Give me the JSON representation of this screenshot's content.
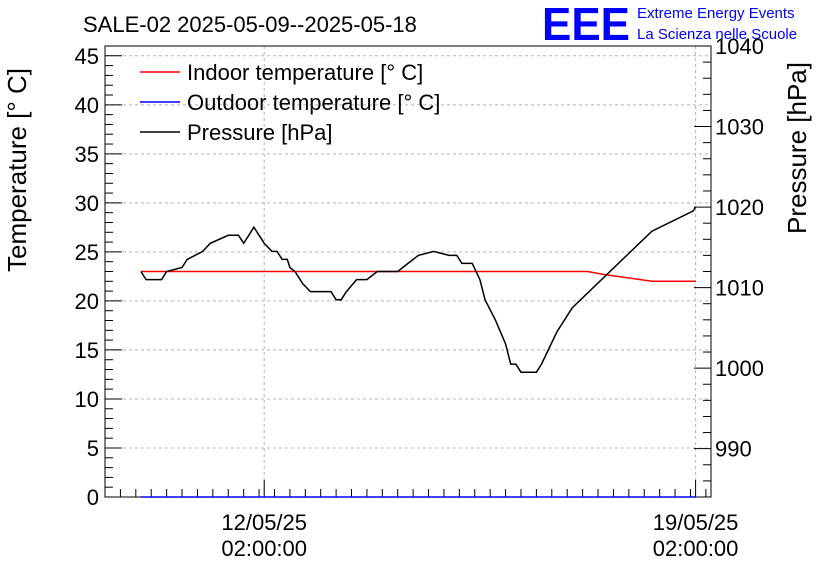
{
  "logo": {
    "mark": "EEE",
    "line1": "Extreme Energy Events",
    "line2": "La Scienza nelle Scuole",
    "color": "#0000ff"
  },
  "chart_data": {
    "type": "line",
    "title": "SALE-02 2025-05-09--2025-05-18",
    "ylabel": "Temperature [° C]",
    "y2label": "Pressure [hPa]",
    "xlim": [
      "2025-05-09 12:00",
      "2025-05-19 08:00"
    ],
    "ylim": [
      0,
      46
    ],
    "y2lim": [
      984,
      1040
    ],
    "y_ticks": [
      0,
      5,
      10,
      15,
      20,
      25,
      30,
      35,
      40,
      45
    ],
    "y2_ticks": [
      990,
      1000,
      1010,
      1020,
      1030,
      1040
    ],
    "x_ticks": [
      {
        "x": "2025-05-12 02:00",
        "line1": "12/05/25",
        "line2": "02:00:00"
      },
      {
        "x": "2025-05-19 02:00",
        "line1": "19/05/25",
        "line2": "02:00:00"
      }
    ],
    "grid": true,
    "legend_position": "top-left",
    "series": [
      {
        "name": "Indoor temperature [° C]",
        "axis": "left",
        "color": "#ff0000",
        "points": [
          [
            "2025-05-10 02:00",
            23
          ],
          [
            "2025-05-12 02:00",
            23
          ],
          [
            "2025-05-14 02:00",
            23
          ],
          [
            "2025-05-16 02:00",
            23
          ],
          [
            "2025-05-17 08:00",
            23
          ],
          [
            "2025-05-17 14:00",
            22.7
          ],
          [
            "2025-05-18 09:00",
            22
          ],
          [
            "2025-05-19 02:00",
            22
          ]
        ]
      },
      {
        "name": "Outdoor temperature [° C]",
        "axis": "left",
        "color": "#0000ff",
        "points": [
          [
            "2025-05-10 02:00",
            0
          ],
          [
            "2025-05-19 02:00",
            0
          ]
        ]
      },
      {
        "name": "Pressure [hPa]",
        "axis": "right",
        "color": "#000000",
        "points": [
          [
            "2025-05-10 02:00",
            1012
          ],
          [
            "2025-05-10 04:00",
            1011
          ],
          [
            "2025-05-10 10:00",
            1011
          ],
          [
            "2025-05-10 12:00",
            1012
          ],
          [
            "2025-05-10 18:00",
            1012.5
          ],
          [
            "2025-05-10 20:00",
            1013.5
          ],
          [
            "2025-05-11 02:00",
            1014.5
          ],
          [
            "2025-05-11 05:00",
            1015.5
          ],
          [
            "2025-05-11 12:00",
            1016.5
          ],
          [
            "2025-05-11 16:00",
            1016.5
          ],
          [
            "2025-05-11 18:00",
            1015.5
          ],
          [
            "2025-05-11 20:00",
            1016.5
          ],
          [
            "2025-05-11 22:00",
            1017.5
          ],
          [
            "2025-05-12 00:00",
            1016.5
          ],
          [
            "2025-05-12 02:00",
            1015.5
          ],
          [
            "2025-05-12 05:00",
            1014.5
          ],
          [
            "2025-05-12 07:00",
            1014.5
          ],
          [
            "2025-05-12 09:00",
            1013.5
          ],
          [
            "2025-05-12 11:00",
            1013.5
          ],
          [
            "2025-05-12 12:00",
            1012.5
          ],
          [
            "2025-05-12 14:00",
            1012
          ],
          [
            "2025-05-12 17:00",
            1010.5
          ],
          [
            "2025-05-12 20:00",
            1009.5
          ],
          [
            "2025-05-13 04:00",
            1009.5
          ],
          [
            "2025-05-13 06:00",
            1008.5
          ],
          [
            "2025-05-13 08:00",
            1008.5
          ],
          [
            "2025-05-13 10:00",
            1009.5
          ],
          [
            "2025-05-13 14:00",
            1011
          ],
          [
            "2025-05-13 18:00",
            1011
          ],
          [
            "2025-05-13 22:00",
            1012
          ],
          [
            "2025-05-14 06:00",
            1012
          ],
          [
            "2025-05-14 10:00",
            1013
          ],
          [
            "2025-05-14 14:00",
            1014
          ],
          [
            "2025-05-14 20:00",
            1014.5
          ],
          [
            "2025-05-15 02:00",
            1014
          ],
          [
            "2025-05-15 05:00",
            1014
          ],
          [
            "2025-05-15 07:00",
            1013
          ],
          [
            "2025-05-15 11:00",
            1013
          ],
          [
            "2025-05-15 14:00",
            1011
          ],
          [
            "2025-05-15 16:00",
            1008.5
          ],
          [
            "2025-05-15 20:00",
            1006
          ],
          [
            "2025-05-16 00:00",
            1003
          ],
          [
            "2025-05-16 02:00",
            1000.5
          ],
          [
            "2025-05-16 04:00",
            1000.5
          ],
          [
            "2025-05-16 06:00",
            999.5
          ],
          [
            "2025-05-16 12:00",
            999.5
          ],
          [
            "2025-05-16 14:00",
            1000.5
          ],
          [
            "2025-05-16 17:00",
            1002.5
          ],
          [
            "2025-05-16 20:00",
            1004.5
          ],
          [
            "2025-05-17 02:00",
            1007.5
          ],
          [
            "2025-05-18 09:00",
            1017
          ],
          [
            "2025-05-19 01:00",
            1019.5
          ],
          [
            "2025-05-19 02:00",
            1020
          ]
        ]
      }
    ]
  }
}
